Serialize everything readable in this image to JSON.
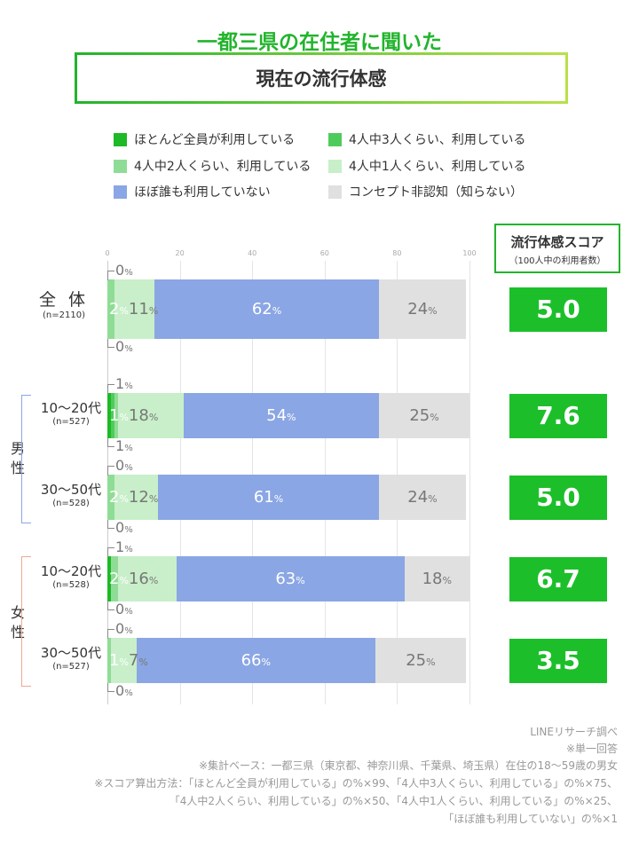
{
  "header": {
    "title": "一都三県の在住者に聞いた",
    "subtitle": "現在の流行体感"
  },
  "score_header": {
    "title": "流行体感スコア",
    "sub": "（100人中の利用者数）"
  },
  "colors": {
    "accent": "#22b42c",
    "cats": [
      "#1db926",
      "#4fcb5b",
      "#8fdc96",
      "#c8efc9",
      "#8aa6e4",
      "#e0e0e0"
    ]
  },
  "chart_data": {
    "type": "bar",
    "orientation": "horizontal",
    "stacked": true,
    "xlim": [
      0,
      100
    ],
    "ticks": [
      "0",
      "20",
      "40",
      "60",
      "80",
      "100"
    ],
    "legend": [
      "ほとんど全員が利用している",
      "4人中3人くらい、利用している",
      "4人中2人くらい、利用している",
      "4人中1人くらい、利用している",
      "ほぼ誰も利用していない",
      "コンセプト非認知（知らない）"
    ],
    "rows": [
      {
        "label": "全 体",
        "n": "(n=2110)",
        "values": [
          0,
          0,
          2,
          11,
          62,
          24
        ],
        "score": "5.0"
      },
      {
        "label": "10〜20代",
        "n": "(n=527)",
        "group": "男性",
        "values": [
          1,
          1,
          1,
          18,
          54,
          25
        ],
        "score": "7.6"
      },
      {
        "label": "30〜50代",
        "n": "(n=528)",
        "group": "男性",
        "values": [
          0,
          0,
          2,
          12,
          61,
          24
        ],
        "score": "5.0"
      },
      {
        "label": "10〜20代",
        "n": "(n=528)",
        "group": "女性",
        "values": [
          1,
          0,
          2,
          16,
          63,
          18
        ],
        "score": "6.7"
      },
      {
        "label": "30〜50代",
        "n": "(n=527)",
        "group": "女性",
        "values": [
          0,
          0,
          1,
          7,
          66,
          25
        ],
        "score": "3.5"
      }
    ],
    "unit": "%"
  },
  "groups": {
    "male": [
      "男",
      "性"
    ],
    "female": [
      "女",
      "性"
    ]
  },
  "notes": [
    "LINEリサーチ調べ",
    "※単一回答",
    "※集計ベース：一都三県（東京都、神奈川県、千葉県、埼玉県）在住の18〜59歳の男女",
    "※スコア算出方法：「ほとんど全員が利用している」の%×99、「4人中3人くらい、利用している」の%×75、",
    "「4人中2人くらい、利用している」の%×50、「4人中1人くらい、利用している」の%×25、",
    "「ほぼ誰も利用していない」の%×1"
  ]
}
